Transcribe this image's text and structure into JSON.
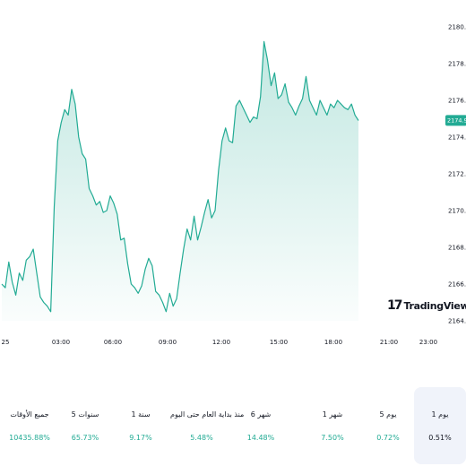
{
  "chart_data": {
    "type": "area",
    "y_ticks": [
      "2180.00",
      "2178.00",
      "2176.00",
      "2174.00",
      "2172.00",
      "2170.00",
      "2168.00",
      "2166.00",
      "2164.00"
    ],
    "ylim": [
      2164,
      2180
    ],
    "x_ticks": [
      "25",
      "03:00",
      "06:00",
      "09:00",
      "12:00",
      "15:00",
      "18:00",
      "21:00",
      "23:00"
    ],
    "last_price": 2174.91,
    "last_price_label": "2174.91",
    "line_color": "#22ab94",
    "fill_color": "#d6f0ea",
    "series": [
      {
        "values": [
          2166.0,
          2165.8,
          2167.2,
          2166.1,
          2165.4,
          2166.6,
          2166.2,
          2167.3,
          2167.5,
          2167.9,
          2166.6,
          2165.3,
          2165.0,
          2164.8,
          2164.5,
          2170.2,
          2173.8,
          2174.8,
          2175.5,
          2175.2,
          2176.6,
          2175.8,
          2174.0,
          2173.1,
          2172.8,
          2171.2,
          2170.8,
          2170.3,
          2170.5,
          2169.9,
          2170.0,
          2170.8,
          2170.4,
          2169.8,
          2168.4,
          2168.5,
          2167.1,
          2166.0,
          2165.8,
          2165.5,
          2165.9,
          2166.8,
          2167.4,
          2167.0,
          2165.6,
          2165.4,
          2165.0,
          2164.5,
          2165.5,
          2164.8,
          2165.2,
          2166.6,
          2167.9,
          2169.0,
          2168.4,
          2169.7,
          2168.4,
          2169.1,
          2169.9,
          2170.6,
          2169.6,
          2170.0,
          2172.2,
          2173.8,
          2174.5,
          2173.8,
          2173.7,
          2175.7,
          2176.0,
          2175.6,
          2175.2,
          2174.8,
          2175.1,
          2175.0,
          2176.2,
          2179.2,
          2178.2,
          2176.8,
          2177.5,
          2176.1,
          2176.3,
          2176.9,
          2175.9,
          2175.6,
          2175.2,
          2175.7,
          2176.1,
          2177.3,
          2176.0,
          2175.6,
          2175.2,
          2176.0,
          2175.6,
          2175.2,
          2175.8,
          2175.6,
          2176.0,
          2175.8,
          2175.6,
          2175.5,
          2175.8,
          2175.2,
          2174.9
        ]
      }
    ]
  },
  "logo": {
    "brand": "TradingView"
  },
  "periods": [
    {
      "label": "جميع الأوقات",
      "value": "10435.88%",
      "active": false
    },
    {
      "label": "5 سنوات",
      "value": "65.73%",
      "active": false
    },
    {
      "label": "1 سنة",
      "value": "9.17%",
      "active": false
    },
    {
      "label": "منذ بداية العام حتى اليوم",
      "value": "5.48%",
      "active": false
    },
    {
      "label": "6 شهر",
      "value": "14.48%",
      "active": false
    },
    {
      "label": "1 شهر",
      "value": "7.50%",
      "active": false
    },
    {
      "label": "5 يوم",
      "value": "0.72%",
      "active": false
    },
    {
      "label": "1 يوم",
      "value": "0.51%",
      "active": true
    }
  ]
}
